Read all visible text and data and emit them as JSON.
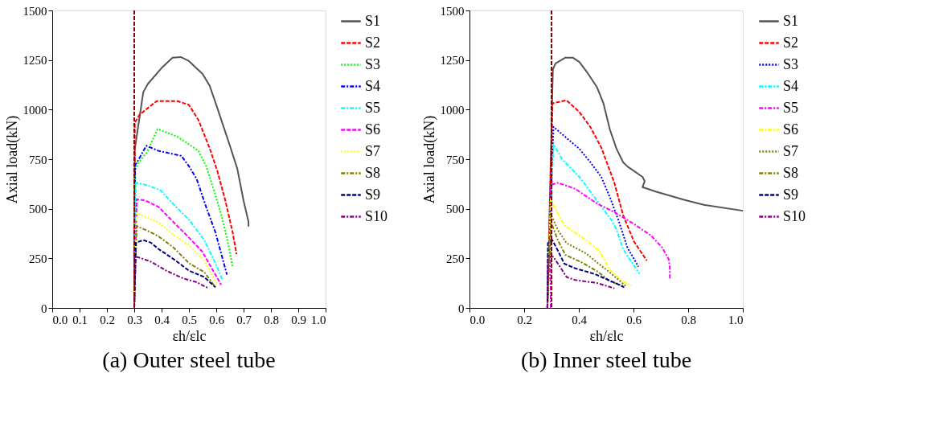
{
  "chart_data": [
    {
      "type": "line",
      "title": "(a) Outer steel tube",
      "xlabel": "εh/εlc",
      "ylabel": "Axial load(kN)",
      "xlim": [
        0,
        1.0
      ],
      "ylim": [
        0,
        1500
      ],
      "xticks": [
        {
          "value": 0,
          "label": "0.0"
        },
        {
          "value": 0.1,
          "label": "0.1"
        },
        {
          "value": 0.2,
          "label": "0.2"
        },
        {
          "value": 0.3,
          "label": "0.3"
        },
        {
          "value": 0.4,
          "label": "0.4"
        },
        {
          "value": 0.5,
          "label": "0.5"
        },
        {
          "value": 0.6,
          "label": "0.6"
        },
        {
          "value": 0.7,
          "label": "0.7"
        },
        {
          "value": 0.8,
          "label": "0.8"
        },
        {
          "value": 0.9,
          "label": "0.9"
        },
        {
          "value": 1.0,
          "label": "1.0"
        }
      ],
      "yticks": [
        0,
        250,
        500,
        750,
        1000,
        1250,
        1500
      ],
      "grid": false,
      "legend": "top right",
      "ref_lines": [
        {
          "axis": "x",
          "value": 0.3,
          "color": "#8b0000",
          "line_style": "dashed"
        }
      ],
      "series": [
        {
          "name": "S1",
          "color": "#555555",
          "line_style": "solid",
          "x": [
            0.3,
            0.302,
            0.333,
            0.35,
            0.4,
            0.44,
            0.47,
            0.5,
            0.55,
            0.576,
            0.6,
            0.65,
            0.677,
            0.7,
            0.718,
            0.718
          ],
          "values": [
            0,
            800,
            1088,
            1130,
            1210,
            1262,
            1265,
            1245,
            1180,
            1120,
            1024,
            818,
            702,
            540,
            435,
            410
          ]
        },
        {
          "name": "S2",
          "color": "#ff0000",
          "line_style": "dashed",
          "x": [
            0.3,
            0.302,
            0.319,
            0.347,
            0.382,
            0.458,
            0.5,
            0.535,
            0.576,
            0.604,
            0.632,
            0.66,
            0.674
          ],
          "values": [
            0,
            934,
            973,
            1005,
            1043,
            1043,
            1024,
            947,
            805,
            690,
            548,
            381,
            271
          ]
        },
        {
          "name": "S3",
          "color": "#00ff00",
          "line_style": "dotted",
          "x": [
            0.3,
            0.303,
            0.313,
            0.347,
            0.385,
            0.41,
            0.458,
            0.5,
            0.535,
            0.563,
            0.59,
            0.618,
            0.639,
            0.66
          ],
          "values": [
            0,
            690,
            728,
            786,
            902,
            889,
            863,
            825,
            792,
            715,
            600,
            471,
            355,
            207
          ]
        },
        {
          "name": "S4",
          "color": "#0000ff",
          "line_style": "dashdot",
          "x": [
            0.3,
            0.303,
            0.313,
            0.344,
            0.389,
            0.472,
            0.5,
            0.528,
            0.563,
            0.597,
            0.625,
            0.639
          ],
          "values": [
            0,
            720,
            741,
            818,
            792,
            767,
            715,
            651,
            509,
            381,
            239,
            168
          ]
        },
        {
          "name": "S5",
          "color": "#00ffff",
          "line_style": "dashdot",
          "x": [
            0.3,
            0.306,
            0.347,
            0.396,
            0.444,
            0.5,
            0.556,
            0.597,
            0.622
          ],
          "values": [
            0,
            632,
            619,
            593,
            522,
            445,
            342,
            226,
            143
          ]
        },
        {
          "name": "S6",
          "color": "#ff00ff",
          "line_style": "dashed",
          "x": [
            0.3,
            0.309,
            0.34,
            0.389,
            0.444,
            0.5,
            0.549,
            0.583,
            0.618
          ],
          "values": [
            0,
            548,
            542,
            509,
            432,
            355,
            284,
            201,
            117
          ]
        },
        {
          "name": "S7",
          "color": "#ffff00",
          "line_style": "dotted",
          "x": [
            0.3,
            0.309,
            0.354,
            0.389,
            0.444,
            0.5,
            0.556,
            0.604
          ],
          "values": [
            0,
            477,
            452,
            432,
            368,
            316,
            239,
            117
          ]
        },
        {
          "name": "S8",
          "color": "#808000",
          "line_style": "dashdot",
          "x": [
            0.3,
            0.309,
            0.361,
            0.389,
            0.444,
            0.5,
            0.556,
            0.597
          ],
          "values": [
            0,
            413,
            381,
            361,
            304,
            226,
            181,
            104
          ]
        },
        {
          "name": "S9",
          "color": "#000080",
          "line_style": "dashed",
          "x": [
            0.3,
            0.306,
            0.333,
            0.361,
            0.389,
            0.444,
            0.5,
            0.556,
            0.597
          ],
          "values": [
            0,
            329,
            342,
            329,
            297,
            246,
            188,
            156,
            104
          ]
        },
        {
          "name": "S10",
          "color": "#800080",
          "line_style": "dashdot",
          "x": [
            0.3,
            0.302,
            0.323,
            0.361,
            0.417,
            0.479,
            0.528,
            0.573
          ],
          "values": [
            0,
            260,
            252,
            233,
            188,
            149,
            130,
            98
          ]
        }
      ]
    },
    {
      "type": "line",
      "title": "(b) Inner steel tube",
      "xlabel": "εh/εlc",
      "ylabel": "Axial load(kN)",
      "xlim": [
        0,
        1.0
      ],
      "ylim": [
        0,
        1500
      ],
      "xticks": [
        {
          "value": 0,
          "label": "0.0"
        },
        {
          "value": 0.2,
          "label": "0.2"
        },
        {
          "value": 0.4,
          "label": "0.4"
        },
        {
          "value": 0.6,
          "label": "0.6"
        },
        {
          "value": 0.8,
          "label": "0.8"
        },
        {
          "value": 1.0,
          "label": "1.0"
        }
      ],
      "yticks": [
        0,
        250,
        500,
        750,
        1000,
        1250,
        1500
      ],
      "grid": false,
      "legend": "top right",
      "ref_lines": [
        {
          "axis": "x",
          "value": 0.3,
          "color": "#8b0000",
          "line_style": "dashed"
        }
      ],
      "series": [
        {
          "name": "S1",
          "color": "#555555",
          "line_style": "solid",
          "x": [
            0.285,
            0.305,
            0.315,
            0.351,
            0.378,
            0.402,
            0.434,
            0.466,
            0.49,
            0.514,
            0.538,
            0.562,
            0.578,
            0.633,
            0.641,
            0.633,
            0.681,
            0.785,
            0.857,
            1.0
          ],
          "values": [
            0,
            1203,
            1233,
            1262,
            1262,
            1240,
            1181,
            1114,
            1032,
            898,
            802,
            735,
            713,
            661,
            639,
            609,
            587,
            545,
            520,
            490
          ]
        },
        {
          "name": "S2",
          "color": "#ff0000",
          "line_style": "dashed",
          "x": [
            0.285,
            0.304,
            0.355,
            0.402,
            0.442,
            0.482,
            0.53,
            0.562,
            0.602,
            0.649
          ],
          "values": [
            0,
            1032,
            1047,
            988,
            913,
            809,
            631,
            468,
            334,
            238
          ]
        },
        {
          "name": "S3",
          "color": "#0000ff",
          "line_style": "dotted",
          "x": [
            0.285,
            0.307,
            0.339,
            0.402,
            0.442,
            0.482,
            0.514,
            0.546,
            0.578,
            0.618
          ],
          "values": [
            0,
            913,
            876,
            802,
            735,
            661,
            557,
            438,
            304,
            208
          ]
        },
        {
          "name": "S4",
          "color": "#00ffff",
          "line_style": "dashdot",
          "x": [
            0.285,
            0.307,
            0.339,
            0.402,
            0.466,
            0.522,
            0.538,
            0.562,
            0.622
          ],
          "values": [
            0,
            824,
            750,
            661,
            542,
            438,
            394,
            297,
            171
          ]
        },
        {
          "name": "S5",
          "color": "#ff00ff",
          "line_style": "dashdot",
          "x": [
            0.297,
            0.297,
            0.323,
            0.386,
            0.466,
            0.53,
            0.602,
            0.665,
            0.705,
            0.729,
            0.733,
            0.733
          ],
          "values": [
            0,
            620,
            631,
            601,
            527,
            483,
            423,
            364,
            304,
            245,
            200,
            149
          ]
        },
        {
          "name": "S6",
          "color": "#ffff00",
          "line_style": "dashdot",
          "x": [
            0.285,
            0.297,
            0.315,
            0.347,
            0.426,
            0.474,
            0.514,
            0.554,
            0.594
          ],
          "values": [
            0,
            549,
            497,
            416,
            342,
            290,
            193,
            141,
            111
          ]
        },
        {
          "name": "S7",
          "color": "#808000",
          "line_style": "dotted",
          "x": [
            0.285,
            0.297,
            0.323,
            0.355,
            0.426,
            0.466,
            0.514,
            0.574
          ],
          "values": [
            0,
            475,
            394,
            327,
            275,
            230,
            178,
            108
          ]
        },
        {
          "name": "S8",
          "color": "#808000",
          "line_style": "dashdot",
          "x": [
            0.285,
            0.299,
            0.323,
            0.351,
            0.41,
            0.466,
            0.514,
            0.562
          ],
          "values": [
            0,
            431,
            342,
            267,
            230,
            186,
            134,
            111
          ]
        },
        {
          "name": "S9",
          "color": "#000080",
          "line_style": "dashed",
          "x": [
            0.285,
            0.287,
            0.303,
            0.323,
            0.347,
            0.386,
            0.458,
            0.538,
            0.566
          ],
          "values": [
            0,
            327,
            342,
            290,
            223,
            200,
            171,
            123,
            104
          ]
        },
        {
          "name": "S10",
          "color": "#800080",
          "line_style": "dashdot",
          "x": [
            0.285,
            0.287,
            0.307,
            0.331,
            0.355,
            0.386,
            0.466,
            0.53
          ],
          "values": [
            0,
            260,
            257,
            208,
            156,
            141,
            126,
            99
          ]
        }
      ]
    }
  ]
}
